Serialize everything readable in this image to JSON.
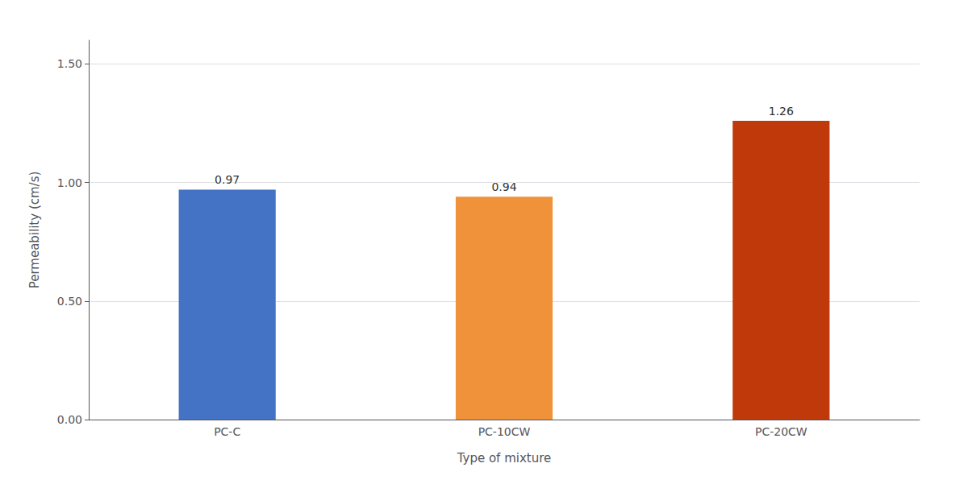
{
  "chart_data": {
    "type": "bar",
    "categories": [
      "PC-C",
      "PC-10CW",
      "PC-20CW"
    ],
    "values": [
      0.97,
      0.94,
      1.26
    ],
    "colors": [
      "#4472C4",
      "#F0923A",
      "#C0390A"
    ],
    "xlabel": "Type of mixture",
    "ylabel": "Permeability (cm/s)",
    "ylim": [
      0,
      1.6
    ],
    "yticks": [
      {
        "value": 0.0,
        "label": "0.00"
      },
      {
        "value": 0.5,
        "label": "0.50"
      },
      {
        "value": 1.0,
        "label": "1.00"
      },
      {
        "value": 1.5,
        "label": "1.50"
      }
    ],
    "grid": true,
    "data_labels": true
  }
}
